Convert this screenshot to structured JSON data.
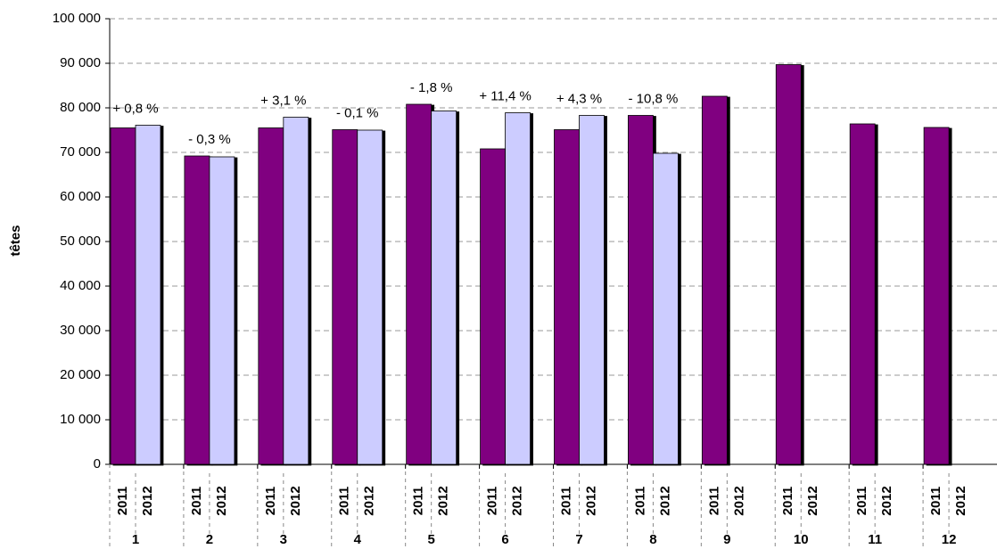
{
  "chart_data": {
    "type": "bar",
    "y_label": "têtes",
    "categories": [
      "1",
      "2",
      "3",
      "4",
      "5",
      "6",
      "7",
      "8",
      "9",
      "10",
      "11",
      "12"
    ],
    "series": [
      {
        "name": "2011",
        "color": "#800080",
        "values": [
          75500,
          69200,
          75500,
          75100,
          80800,
          70800,
          75100,
          78300,
          82600,
          89700,
          76400,
          75600
        ]
      },
      {
        "name": "2012",
        "color": "#ccccff",
        "values": [
          76100,
          69000,
          77900,
          75000,
          79300,
          78900,
          78300,
          69800,
          null,
          null,
          null,
          null
        ]
      }
    ],
    "annotations": [
      "+ 0,8 %",
      "- 0,3 %",
      "+ 3,1 %",
      "- 0,1 %",
      "- 1,8 %",
      "+ 11,4 %",
      "+ 4,3 %",
      "- 10,8 %"
    ],
    "ylim": [
      0,
      100000
    ],
    "yticks": [
      0,
      {
        "value": 10000,
        "label": "10 000"
      },
      {
        "value": 20000,
        "label": "20 000"
      },
      {
        "value": 30000,
        "label": "30 000"
      },
      {
        "value": 40000,
        "label": "40 000"
      },
      {
        "value": 50000,
        "label": "50 000"
      },
      {
        "value": 60000,
        "label": "60 000"
      },
      {
        "value": 70000,
        "label": "70 000"
      },
      {
        "value": 80000,
        "label": "80 000"
      },
      {
        "value": 90000,
        "label": "90 000"
      },
      {
        "value": 100000,
        "label": "100 000"
      }
    ],
    "grid": true
  }
}
